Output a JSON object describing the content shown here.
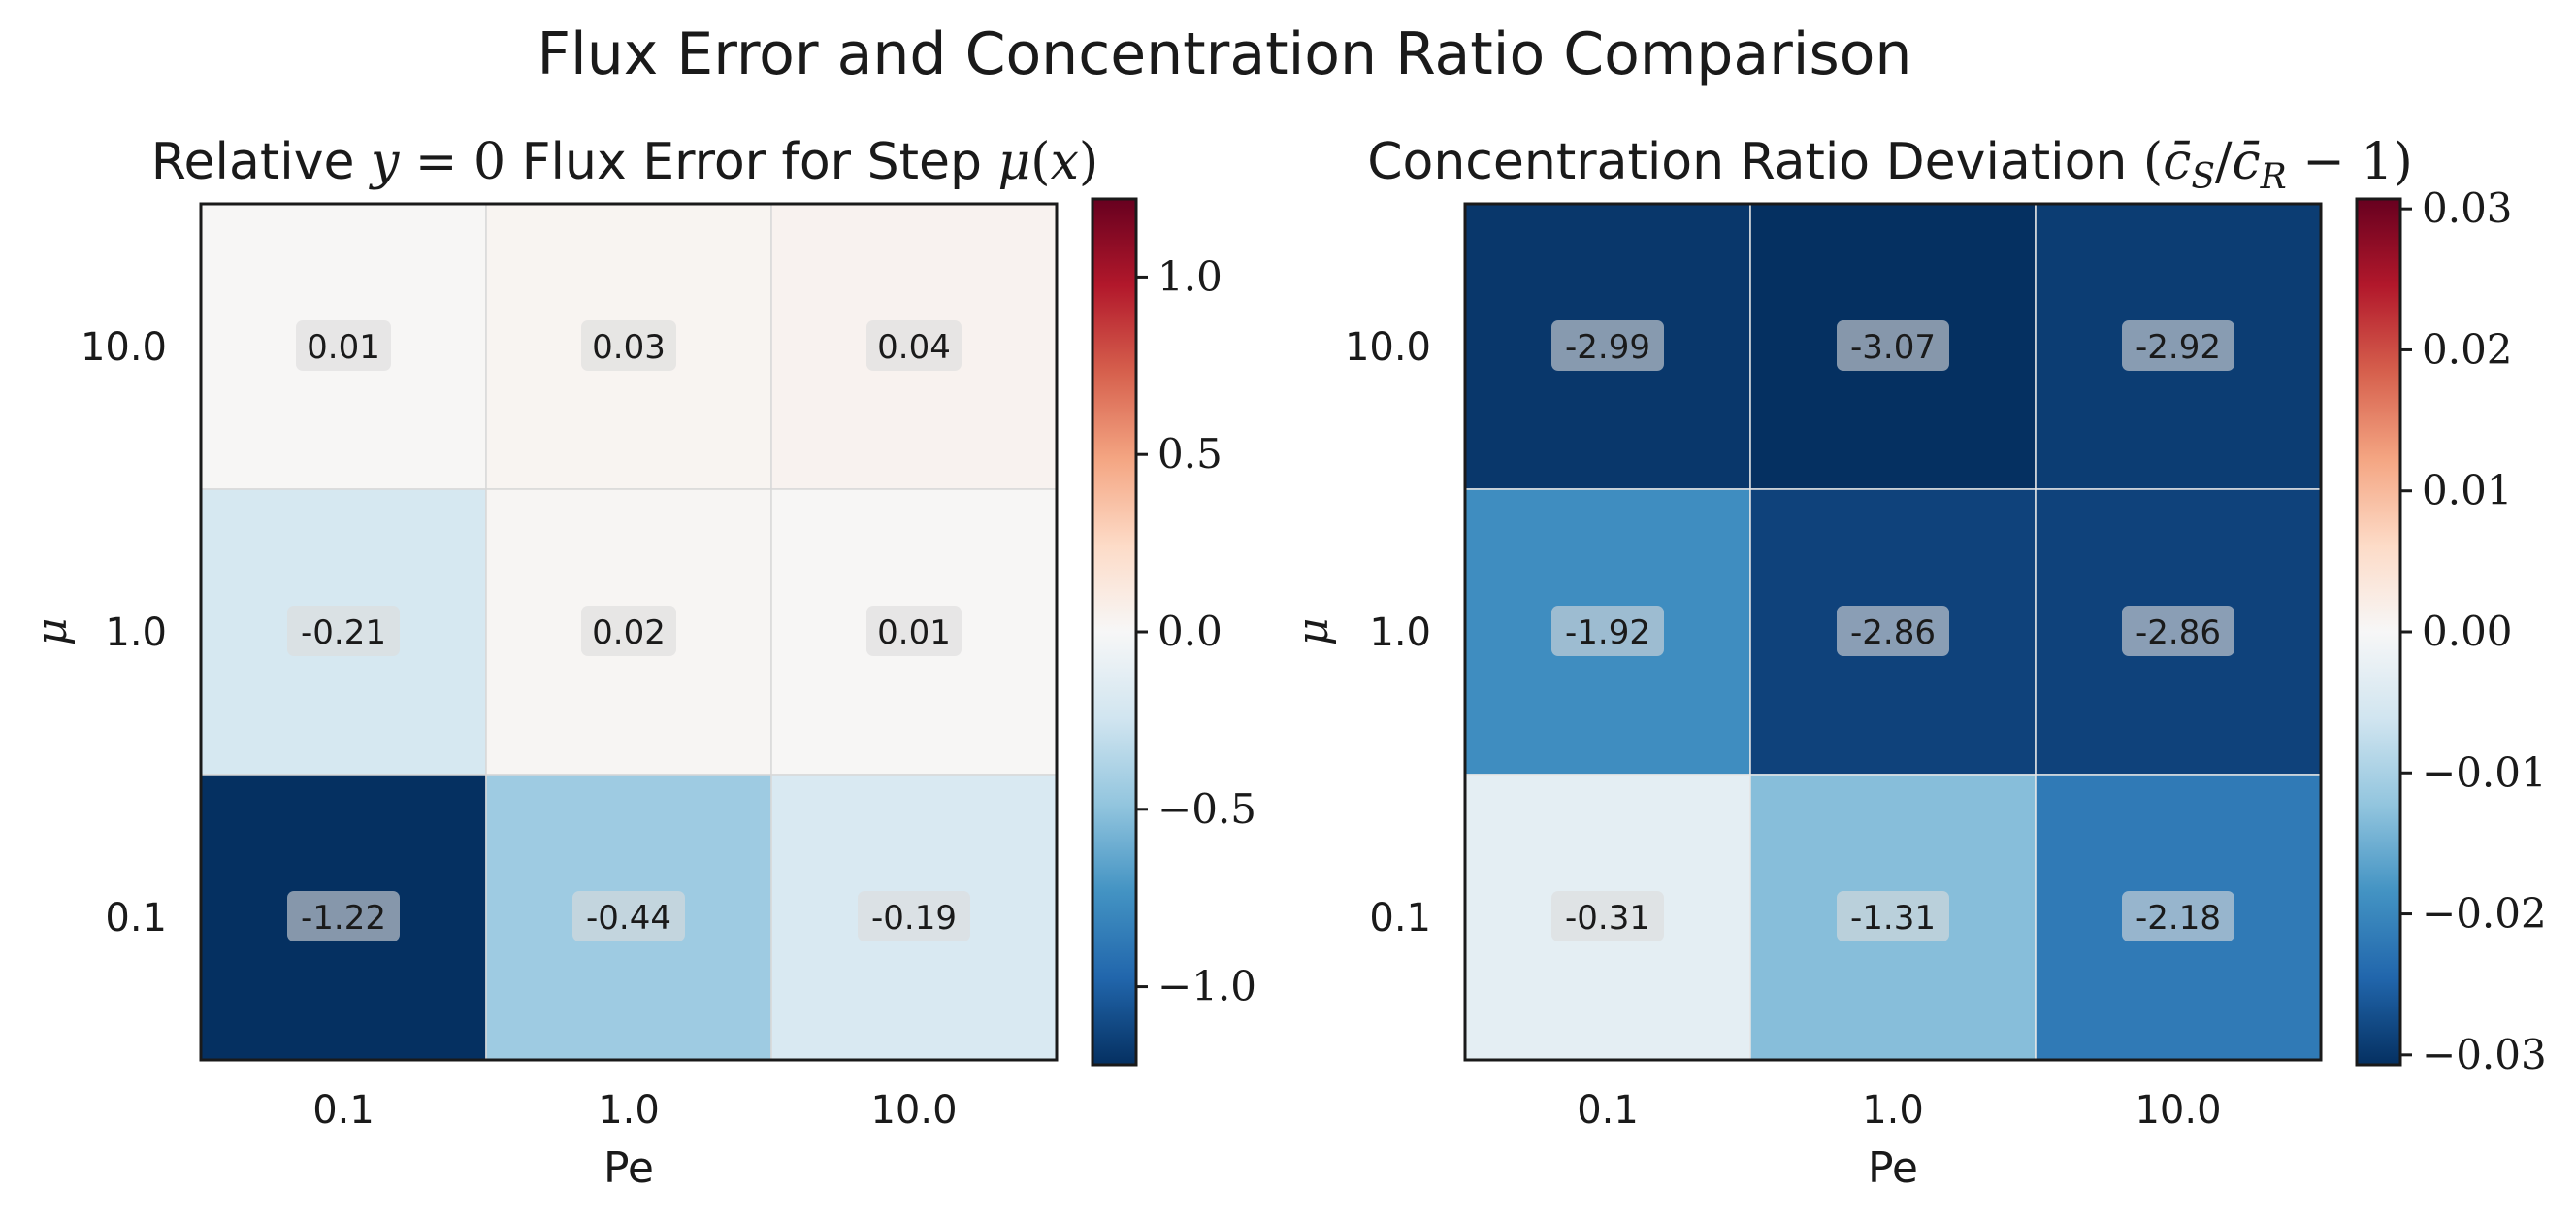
{
  "figure": {
    "title": "Flux Error and Concentration Ratio Comparison"
  },
  "chart_data": [
    {
      "type": "heatmap",
      "title": "Relative y = 0 Flux Error for Step μ(x)",
      "xlabel": "Pe",
      "ylabel": "μ",
      "x_categories": [
        "0.1",
        "1.0",
        "10.0"
      ],
      "y_categories": [
        "10.0",
        "1.0",
        "0.1"
      ],
      "values": [
        [
          0.01,
          0.03,
          0.04
        ],
        [
          -0.21,
          0.02,
          0.01
        ],
        [
          -1.22,
          -0.44,
          -0.19
        ]
      ],
      "annotations": [
        [
          "0.01",
          "0.03",
          "0.04"
        ],
        [
          "-0.21",
          "0.02",
          "0.01"
        ],
        [
          "-1.22",
          "-0.44",
          "-0.19"
        ]
      ],
      "colormap": "RdBu_r",
      "vmin": -1.22,
      "vmax": 1.22,
      "colorbar_ticks": [
        -1.0,
        -0.5,
        0.0,
        0.5,
        1.0
      ],
      "colorbar_tick_labels": [
        "−1.0",
        "−0.5",
        "0.0",
        "0.5",
        "1.0"
      ]
    },
    {
      "type": "heatmap",
      "title": "Concentration Ratio Deviation (c̄S/c̄R − 1)",
      "xlabel": "Pe",
      "ylabel": "μ",
      "x_categories": [
        "0.1",
        "1.0",
        "10.0"
      ],
      "y_categories": [
        "10.0",
        "1.0",
        "0.1"
      ],
      "values": [
        [
          -2.99,
          -3.07,
          -2.92
        ],
        [
          -1.92,
          -2.86,
          -2.86
        ],
        [
          -0.31,
          -1.31,
          -2.18
        ]
      ],
      "annotations": [
        [
          "-2.99",
          "-3.07",
          "-2.92"
        ],
        [
          "-1.92",
          "-2.86",
          "-2.86"
        ],
        [
          "-0.31",
          "-1.31",
          "-2.18"
        ]
      ],
      "colormap": "RdBu_r",
      "vmin": -3.07,
      "vmax": 3.07,
      "colorbar_ticks": [
        -0.03,
        -0.02,
        -0.01,
        0.0,
        0.01,
        0.02,
        0.03
      ],
      "colorbar_tick_labels": [
        "−0.03",
        "−0.02",
        "−0.01",
        "0.00",
        "0.01",
        "0.02",
        "0.03"
      ],
      "colorbar_scale_percent": true
    }
  ]
}
